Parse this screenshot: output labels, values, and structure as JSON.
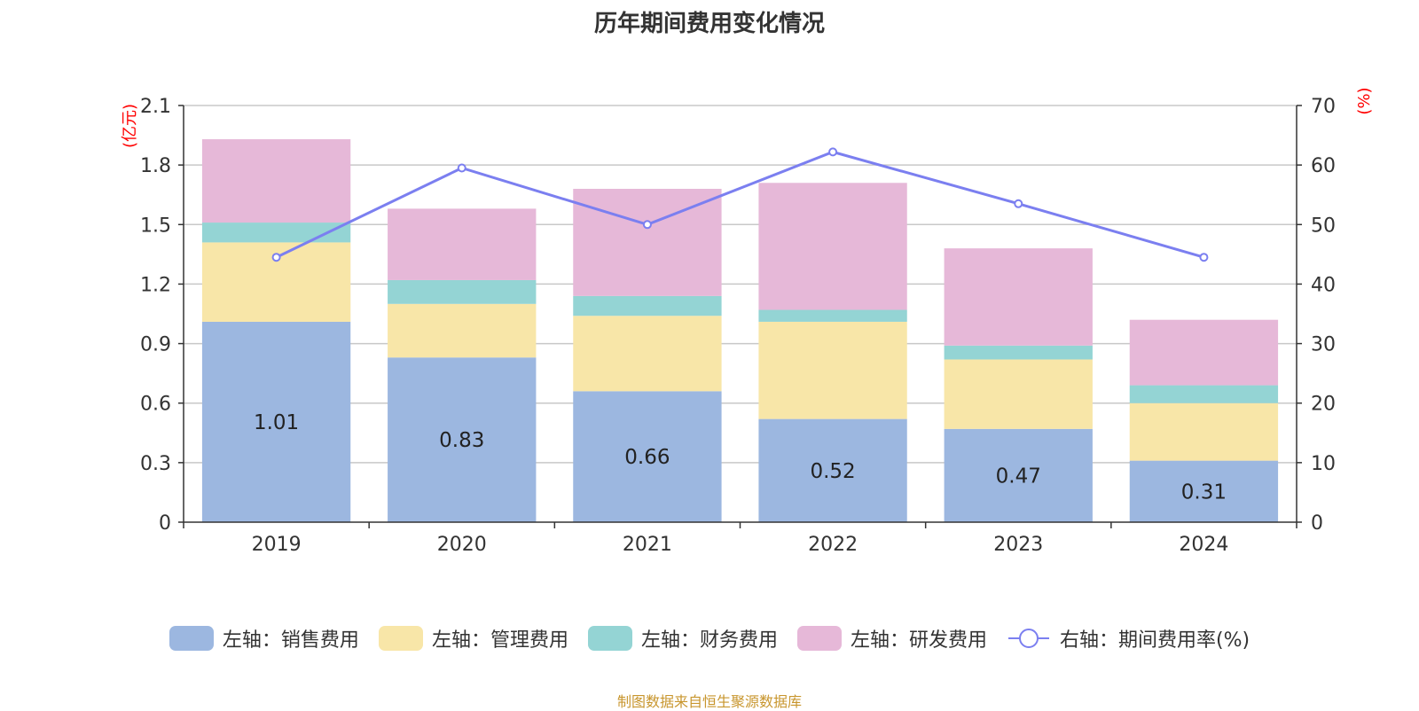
{
  "title": "历年期间费用变化情况",
  "source": "制图数据来自恒生聚源数据库",
  "colors": {
    "sales": "#9cb7e0",
    "admin": "#f8e6a8",
    "finance": "#94d4d4",
    "rnd": "#e6b8d8",
    "rate": "#7b7ff0",
    "axis_unit": "#ff0000",
    "grid": "#c8c8c8"
  },
  "legend": [
    {
      "key": "sales",
      "label": "左轴：销售费用"
    },
    {
      "key": "admin",
      "label": "左轴：管理费用"
    },
    {
      "key": "finance",
      "label": "左轴：财务费用"
    },
    {
      "key": "rnd",
      "label": "左轴：研发费用"
    },
    {
      "key": "rate",
      "label": "右轴：期间费用率(%)"
    }
  ],
  "chart_data": {
    "type": "bar",
    "stacked": true,
    "title": "历年期间费用变化情况",
    "categories": [
      "2019",
      "2020",
      "2021",
      "2022",
      "2023",
      "2024"
    ],
    "left_axis": {
      "unit": "(亿元)",
      "ylim": [
        0,
        2.1
      ],
      "ticks": [
        "0",
        "0.3",
        "0.6",
        "0.9",
        "1.2",
        "1.5",
        "1.8",
        "2.1"
      ]
    },
    "right_axis": {
      "unit": "(%)",
      "ylim": [
        0,
        70
      ],
      "ticks": [
        "0",
        "10",
        "20",
        "30",
        "40",
        "50",
        "60",
        "70"
      ]
    },
    "series": [
      {
        "name": "左轴：销售费用",
        "axis": "left",
        "values": [
          1.01,
          0.83,
          0.66,
          0.52,
          0.47,
          0.31
        ],
        "labels": [
          "1.01",
          "0.83",
          "0.66",
          "0.52",
          "0.47",
          "0.31"
        ]
      },
      {
        "name": "左轴：管理费用",
        "axis": "left",
        "values": [
          0.4,
          0.27,
          0.38,
          0.49,
          0.35,
          0.29
        ]
      },
      {
        "name": "左轴：财务费用",
        "axis": "left",
        "values": [
          0.1,
          0.12,
          0.1,
          0.06,
          0.07,
          0.09
        ]
      },
      {
        "name": "左轴：研发费用",
        "axis": "left",
        "values": [
          0.42,
          0.36,
          0.54,
          0.64,
          0.49,
          0.33
        ]
      },
      {
        "name": "右轴：期间费用率(%)",
        "axis": "right",
        "type": "line",
        "values": [
          44.5,
          59.5,
          50.0,
          62.2,
          53.5,
          44.5
        ]
      }
    ]
  }
}
